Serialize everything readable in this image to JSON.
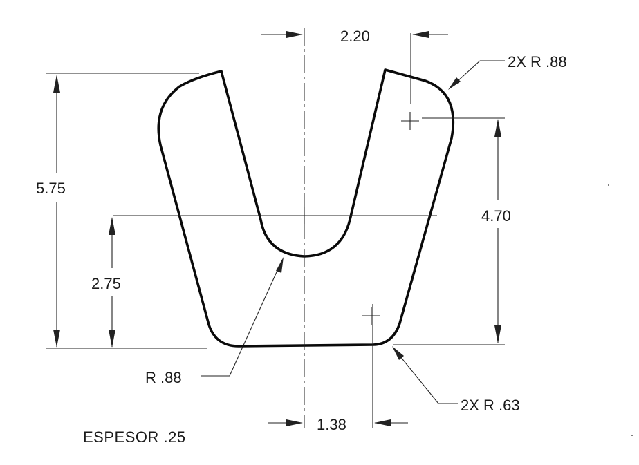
{
  "dimensions": {
    "top_width": "2.20",
    "corner_radius_top": "2X R .88",
    "overall_height": "5.75",
    "right_height": "4.70",
    "slot_center_height": "2.75",
    "slot_radius": "R .88",
    "bottom_radius": "2X R .63",
    "bottom_offset": "1.38"
  },
  "notes": {
    "thickness": "ESPESOR .25"
  },
  "colors": {
    "ink": "#0a0a0a",
    "background": "#ffffff"
  }
}
